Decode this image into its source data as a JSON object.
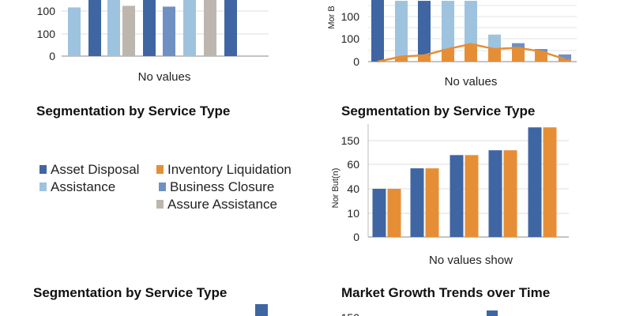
{
  "colors": {
    "dark_blue": "#3F66A3",
    "light_blue": "#9EC3DE",
    "mid_blue": "#6F90C2",
    "gray": "#BDB6AE",
    "orange": "#E68E36"
  },
  "chart_data": [
    {
      "id": "top-left",
      "type": "bar",
      "title": "",
      "xlabel": "No values",
      "ylabel": "",
      "yticks": [
        "0",
        "100",
        "100",
        "100"
      ],
      "grid": true,
      "series": [
        {
          "values": [
            0.61,
            0.98,
            0.98,
            0.63,
            0.98,
            0.62,
            0.98,
            0.98,
            0.98
          ],
          "colors": [
            "light_blue",
            "dark_blue",
            "light_blue",
            "gray",
            "dark_blue",
            "mid_blue",
            "light_blue",
            "gray",
            "dark_blue"
          ]
        }
      ]
    },
    {
      "id": "top-right",
      "type": "bar",
      "title": "",
      "xlabel": "No values",
      "ylabel": "Mor B",
      "yticks": [
        "0",
        "100",
        "100"
      ],
      "grid": true,
      "series": [
        {
          "values": [
            145,
            135,
            135,
            135,
            135,
            60,
            41,
            28,
            16
          ],
          "colors": [
            "dark_blue",
            "light_blue",
            "dark_blue",
            "light_blue",
            "light_blue",
            "light_blue",
            "mid_blue",
            "mid_blue",
            "mid_blue"
          ]
        },
        {
          "type": "line",
          "values": [
            0,
            4,
            5,
            10,
            14,
            10,
            11,
            8,
            2
          ],
          "color": "orange"
        }
      ]
    },
    {
      "id": "middle-right",
      "type": "bar",
      "title": "Segmentation by Service Type",
      "xlabel": "No values show",
      "ylabel": "Nor But(n)",
      "yticks": [
        "0",
        "10",
        "40",
        "60",
        "150"
      ],
      "grid": true,
      "categories": [
        "",
        "",
        "",
        "",
        ""
      ],
      "series": [
        {
          "values": [
            2,
            2.85,
            3.4,
            3.6,
            4.55
          ],
          "color": "dark_blue"
        },
        {
          "values": [
            2,
            2.85,
            3.4,
            3.6,
            4.55
          ],
          "color": "orange"
        }
      ]
    },
    {
      "id": "bottom-left",
      "type": "bar",
      "title": "Segmentation by Service Type",
      "xlabel": "",
      "ylabel": "",
      "series": [
        {
          "values": [
            1
          ],
          "color": "dark_blue"
        }
      ]
    },
    {
      "id": "bottom-right",
      "type": "bar",
      "title": "Market Growth Trends over Time",
      "xlabel": "",
      "ylabel": "",
      "yticks": [
        "150"
      ],
      "series": [
        {
          "values": [
            1
          ],
          "color": "dark_blue"
        }
      ]
    }
  ],
  "middle_left": {
    "title": "Segmentation by Service Type",
    "legend": [
      {
        "label": "Asset Disposal",
        "color": "dark_blue"
      },
      {
        "label": "Inventory Liquidation",
        "color": "orange"
      },
      {
        "label": "Assistance",
        "color": "light_blue"
      },
      {
        "label": "Business Closure",
        "color": "mid_blue"
      },
      {
        "label": "Assure Assistance",
        "color": "gray"
      }
    ]
  }
}
